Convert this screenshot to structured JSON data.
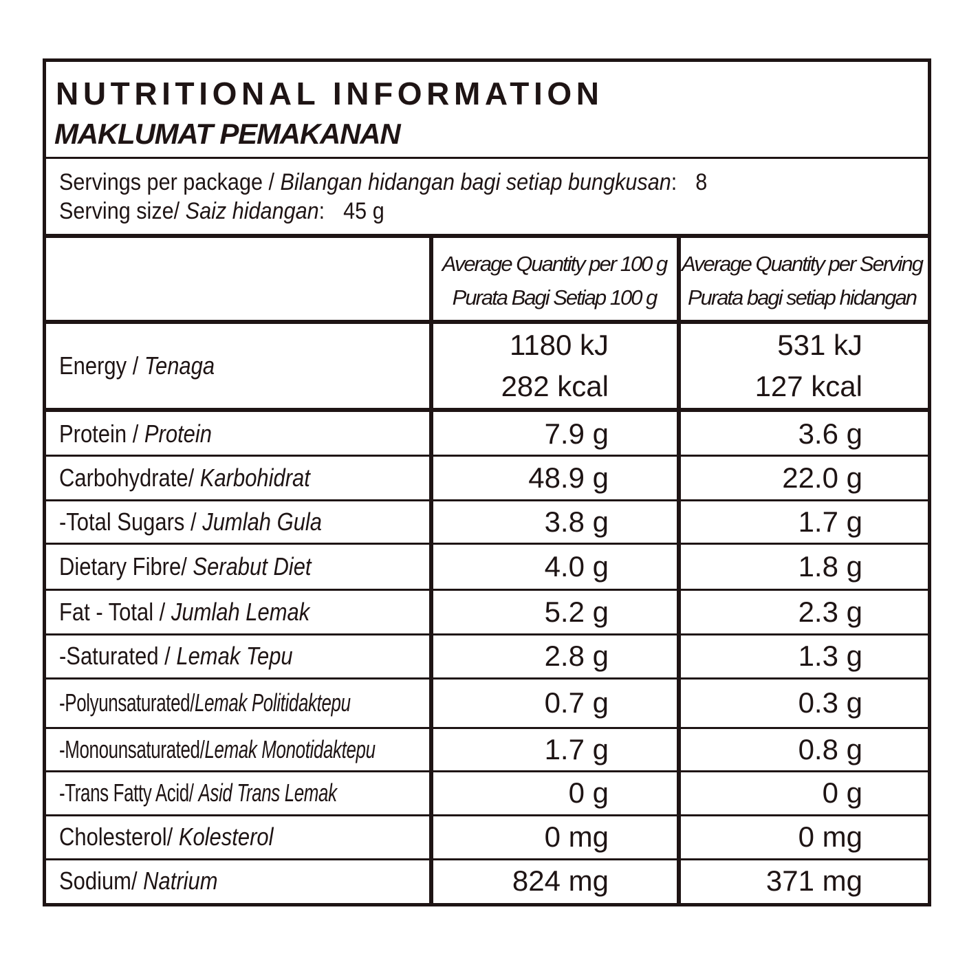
{
  "title": "NUTRITIONAL INFORMATION",
  "subtitle": "MAKLUMAT PEMAKANAN",
  "servings": {
    "per_package_label": "Servings per package / ",
    "per_package_label_malay": "Bilangan hidangan bagi setiap bungkusan",
    "per_package_value": "8",
    "size_label": "Serving size/ ",
    "size_label_malay": "Saiz hidangan",
    "size_value": "45 g"
  },
  "columns": {
    "per100_line1": "Average Quantity per 100 g",
    "per100_line2": "Purata Bagi Setiap 100 g",
    "perserving_line1": "Average Quantity per Serving",
    "perserving_line2": "Purata bagi setiap hidangan"
  },
  "energy": {
    "label": "Energy / ",
    "label_malay": "Tenaga",
    "per100_kj": "1180 kJ",
    "per100_kcal": "282 kcal",
    "serving_kj": "531 kJ",
    "serving_kcal": "127 kcal"
  },
  "rows": [
    {
      "label": "Protein / ",
      "label_malay": "Protein",
      "per100": "7.9 g",
      "serving": "3.6 g"
    },
    {
      "label": "Carbohydrate/ ",
      "label_malay": "Karbohidrat",
      "per100": "48.9 g",
      "serving": "22.0 g"
    },
    {
      "label": "-Total Sugars / ",
      "label_malay": "Jumlah Gula",
      "per100": "3.8 g",
      "serving": "1.7 g"
    },
    {
      "label": "Dietary Fibre/ ",
      "label_malay": "Serabut Diet",
      "per100": "4.0 g",
      "serving": "1.8 g"
    },
    {
      "label": "Fat - Total / ",
      "label_malay": "Jumlah Lemak",
      "per100": "5.2 g",
      "serving": "2.3 g"
    },
    {
      "label": "-Saturated / ",
      "label_malay": "Lemak Tepu",
      "per100": "2.8 g",
      "serving": "1.3 g"
    },
    {
      "label": "-Polyunsaturated/",
      "label_malay": "Lemak Politidaktepu",
      "per100": "0.7 g",
      "serving": "0.3 g"
    },
    {
      "label": "-Monounsaturated/",
      "label_malay": "Lemak Monotidaktepu",
      "per100": "1.7 g",
      "serving": "0.8 g"
    },
    {
      "label": "-Trans Fatty Acid/ ",
      "label_malay": "Asid Trans Lemak",
      "per100": "0 g",
      "serving": "0 g"
    },
    {
      "label": "Cholesterol/ ",
      "label_malay": "Kolesterol",
      "per100": "0 mg",
      "serving": "0 mg"
    },
    {
      "label": "Sodium/ ",
      "label_malay": "Natrium",
      "per100": "824 mg",
      "serving": "371 mg"
    }
  ]
}
